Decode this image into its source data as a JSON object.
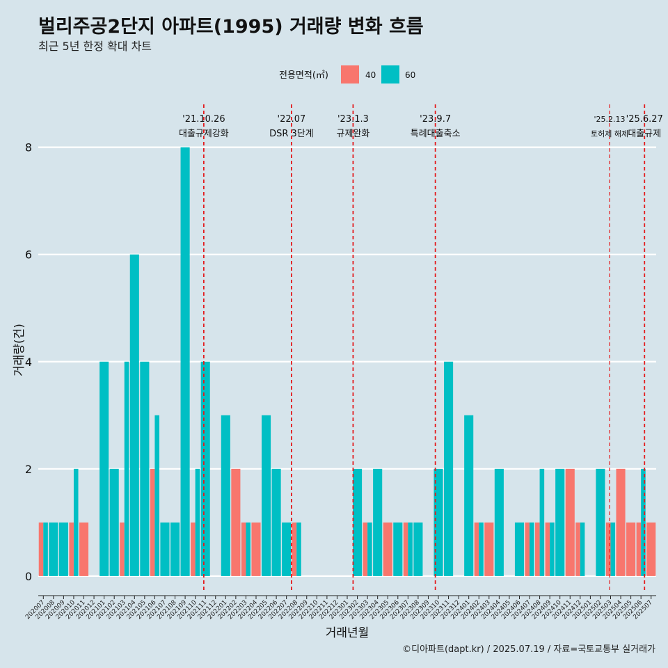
{
  "title": "벌리주공2단지 아파트(1995) 거래량 변화 흐름",
  "subtitle": "최근 5년 한정 확대 차트",
  "caption": "©디아파트(dapt.kr) / 2025.07.19 / 자료=국토교통부 실거래가",
  "colors": {
    "s40": "#f8766d",
    "s60": "#00bfc4",
    "vline": "#e31a1c",
    "grid": "#ffffff"
  },
  "chart_data": {
    "type": "bar",
    "title": "벌리주공2단지 아파트(1995) 거래량 변화 흐름",
    "subtitle": "최근 5년 한정 확대 차트",
    "xlabel": "거래년월",
    "ylabel": "거래량(건)",
    "ylim": [
      -0.3,
      8.8
    ],
    "yticks": [
      0,
      2,
      4,
      6,
      8
    ],
    "legend_title": "전용면적(㎡)",
    "legend_position": "top",
    "categories": [
      "202007",
      "202008",
      "202009",
      "202010",
      "202011",
      "202012",
      "202101",
      "202102",
      "202103",
      "202104",
      "202105",
      "202106",
      "202107",
      "202108",
      "202109",
      "202110",
      "202111",
      "202112",
      "202201",
      "202202",
      "202203",
      "202204",
      "202205",
      "202206",
      "202207",
      "202208",
      "202209",
      "202210",
      "202211",
      "202212",
      "202301",
      "202302",
      "202303",
      "202304",
      "202305",
      "202306",
      "202307",
      "202308",
      "202309",
      "202310",
      "202311",
      "202312",
      "202401",
      "202402",
      "202403",
      "202404",
      "202405",
      "202406",
      "202407",
      "202408",
      "202409",
      "202410",
      "202411",
      "202412",
      "202501",
      "202502",
      "202503",
      "202504",
      "202505",
      "202506",
      "202507"
    ],
    "series": [
      {
        "name": "40",
        "values": [
          1,
          0,
          0,
          1,
          1,
          0,
          0,
          0,
          1,
          0,
          0,
          2,
          0,
          0,
          0,
          1,
          0,
          0,
          0,
          2,
          1,
          1,
          0,
          0,
          0,
          1,
          0,
          0,
          0,
          0,
          0,
          0,
          1,
          0,
          1,
          0,
          1,
          0,
          0,
          0,
          0,
          0,
          0,
          1,
          1,
          0,
          0,
          0,
          1,
          1,
          1,
          0,
          2,
          1,
          0,
          0,
          1,
          2,
          1,
          1,
          1
        ]
      },
      {
        "name": "60",
        "values": [
          1,
          1,
          1,
          2,
          0,
          0,
          4,
          2,
          4,
          6,
          4,
          3,
          1,
          1,
          8,
          2,
          4,
          0,
          3,
          0,
          1,
          0,
          3,
          2,
          1,
          1,
          0,
          0,
          0,
          0,
          0,
          2,
          1,
          2,
          0,
          1,
          1,
          1,
          0,
          2,
          4,
          0,
          3,
          1,
          0,
          2,
          0,
          1,
          1,
          2,
          1,
          2,
          0,
          1,
          0,
          2,
          1,
          0,
          0,
          2,
          0
        ]
      }
    ],
    "annotations": [
      {
        "date": "'21.10.26",
        "label": "대출규제강화",
        "month_index": 15.84
      },
      {
        "date": "'22.07",
        "label": "DSR 3단계",
        "month_index": 24.5
      },
      {
        "date": "'23.1.3",
        "label": "규제완화",
        "month_index": 30.58
      },
      {
        "date": "'23.9.7",
        "label": "특례대출축소",
        "month_index": 38.7
      },
      {
        "date": "'25.2.13",
        "label": "토허제 해제",
        "month_index": 55.9
      },
      {
        "date": "'25.6.27",
        "label": "대출규제",
        "month_index": 59.35
      }
    ]
  }
}
